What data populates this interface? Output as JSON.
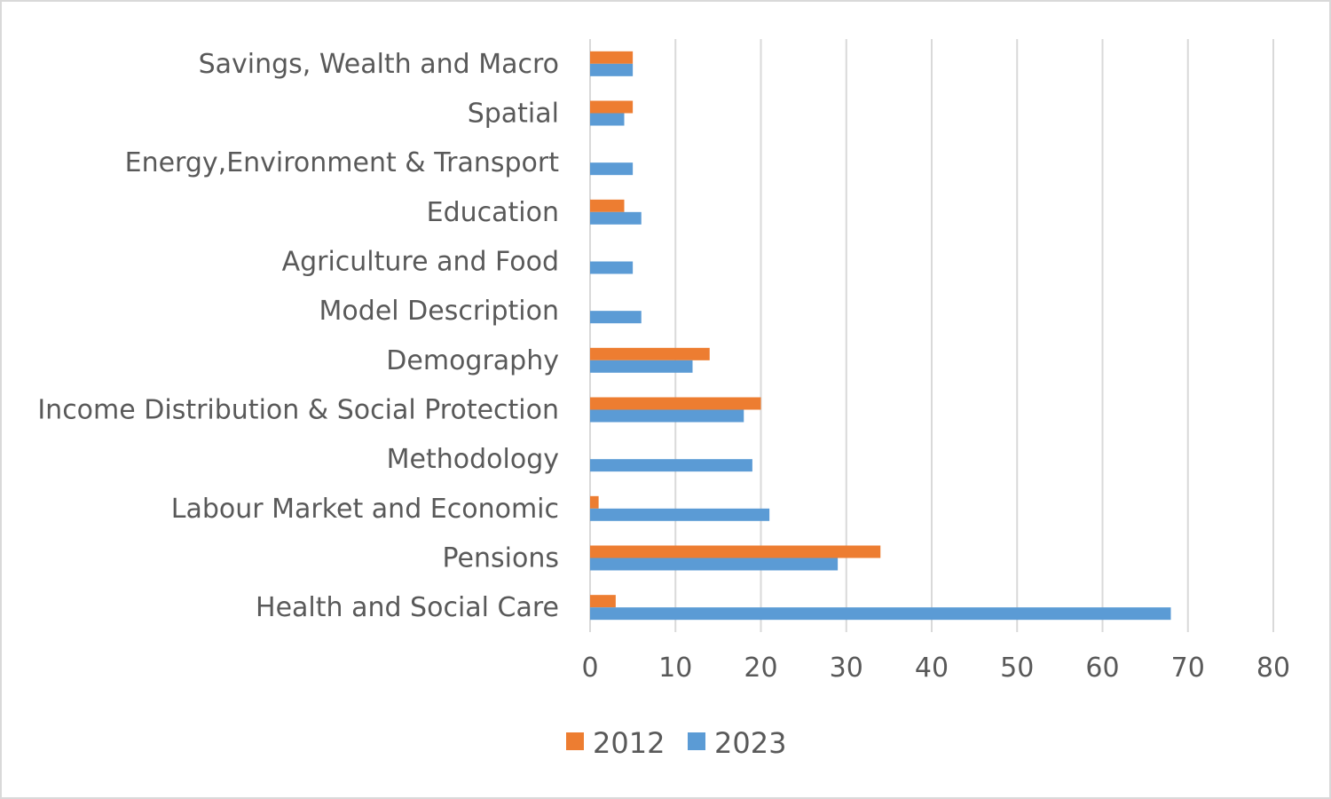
{
  "chart_data": {
    "type": "bar",
    "orientation": "horizontal",
    "categories": [
      "Health and Social Care",
      "Pensions",
      "Labour Market and Economic",
      "Methodology",
      "Income Distribution & Social Protection",
      "Demography",
      "Model Description",
      "Agriculture and Food",
      "Education",
      "Energy,Environment & Transport",
      "Spatial",
      "Savings, Wealth and Macro"
    ],
    "series": [
      {
        "name": "2012",
        "color": "#ed7d31",
        "values": [
          3,
          34,
          1,
          0,
          20,
          14,
          0,
          0,
          4,
          0,
          5,
          5
        ]
      },
      {
        "name": "2023",
        "color": "#5b9bd5",
        "values": [
          68,
          29,
          21,
          19,
          18,
          12,
          6,
          5,
          6,
          5,
          4,
          5
        ]
      }
    ],
    "xlim": [
      0,
      80
    ],
    "xticks": [
      0,
      10,
      20,
      30,
      40,
      50,
      60,
      70,
      80
    ],
    "grid": true,
    "legend_position": "bottom",
    "title": "",
    "xlabel": "",
    "ylabel": ""
  }
}
